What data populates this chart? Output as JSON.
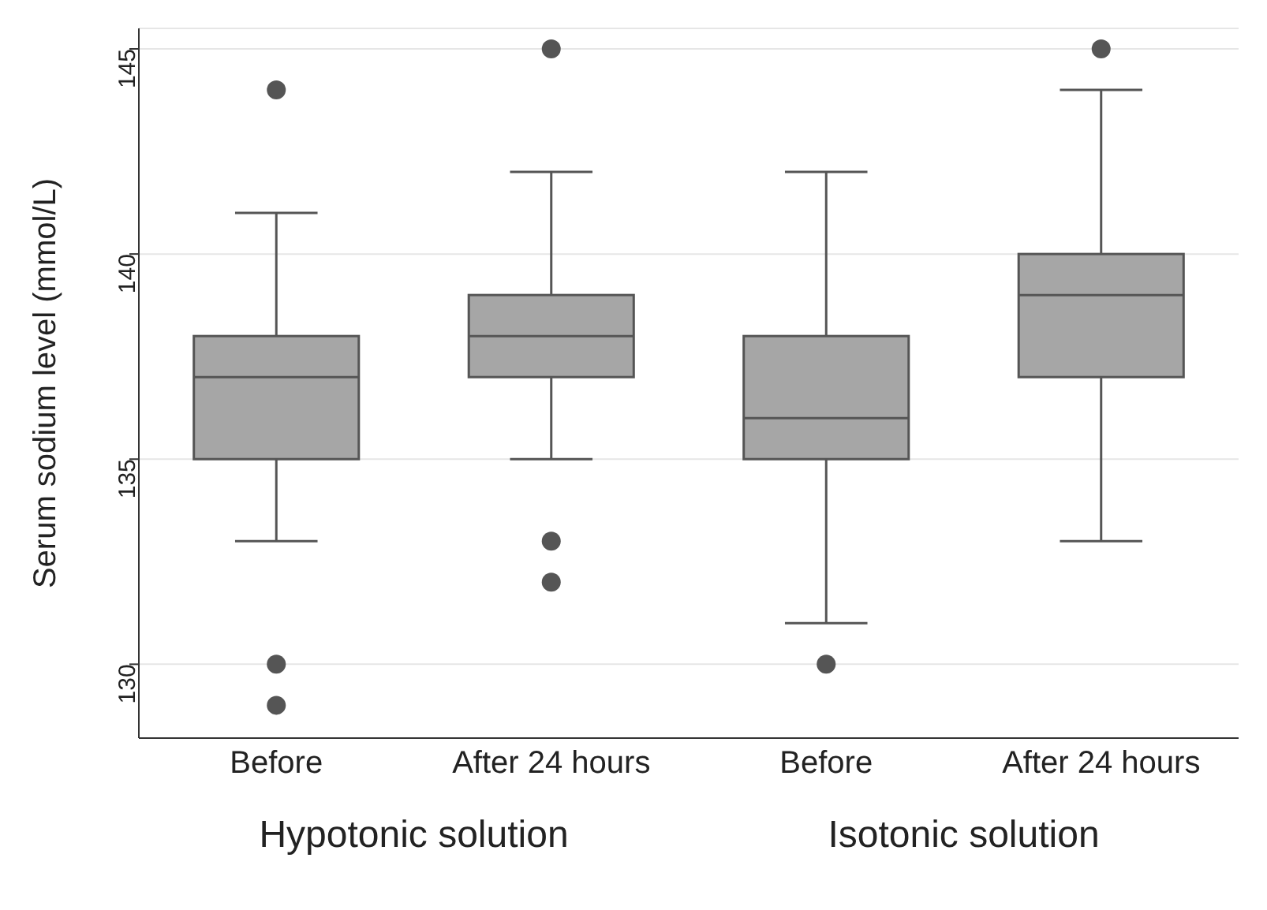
{
  "chart_data": {
    "type": "box",
    "ylabel": "Serum  sodium level (mmol/L)",
    "categories": [
      "Before",
      "After 24 hours",
      "Before",
      "After 24 hours"
    ],
    "boxes": [
      {
        "low": 133,
        "q1": 135,
        "median": 137,
        "q3": 138,
        "high": 141,
        "outliers": [
          144,
          130,
          129
        ]
      },
      {
        "low": 135,
        "q1": 137,
        "median": 138,
        "q3": 139,
        "high": 142,
        "outliers": [
          145,
          133,
          132
        ]
      },
      {
        "low": 131,
        "q1": 135,
        "median": 136,
        "q3": 138,
        "high": 142,
        "outliers": [
          130
        ]
      },
      {
        "low": 133,
        "q1": 137,
        "median": 139,
        "q3": 140,
        "high": 144,
        "outliers": [
          145
        ]
      }
    ],
    "color": "#a6a6a6",
    "ylim": [
      128.2,
      145.5
    ],
    "yticks": [
      130,
      135,
      140,
      145
    ],
    "grid": "y",
    "annotations": [
      "Hypotonic solution",
      "Isotonic solution"
    ]
  }
}
